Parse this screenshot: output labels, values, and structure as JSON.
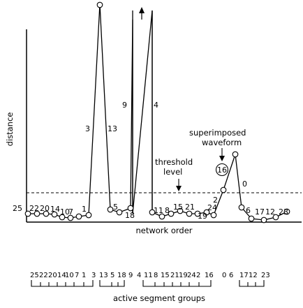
{
  "axis": {
    "y_label": "distance",
    "x_label": "network order"
  },
  "annotations": {
    "threshold_line1": "threshold",
    "threshold_line2": "level",
    "superimposed_line1": "superimposed",
    "superimposed_line2": "waveform",
    "circled_node": "16"
  },
  "node_labels": [
    "25",
    "22",
    "20",
    "14",
    "10",
    "7",
    "1",
    "3",
    "13",
    "5",
    "18",
    "9",
    "4",
    "11",
    "8",
    "15",
    "21",
    "19",
    "24",
    "2",
    "0",
    "6",
    "17",
    "12",
    "23"
  ],
  "bottom_sequence": [
    "25",
    "22",
    "20",
    "14",
    "10",
    "7",
    "1",
    "3",
    "13",
    "5",
    "18",
    "9",
    "4",
    "11",
    "8",
    "15",
    "21",
    "19",
    "24",
    "2",
    "16",
    "0",
    "6",
    "17",
    "12",
    "23"
  ],
  "bottom_caption": "active segment groups"
}
